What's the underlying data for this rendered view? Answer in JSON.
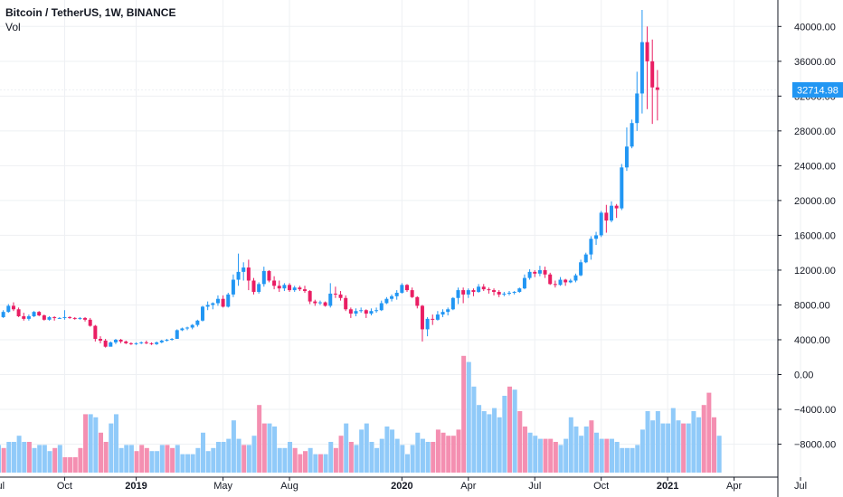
{
  "header": {
    "symbol_line": "Bitcoin / TetherUS, 1W, BINANCE",
    "volume_label": "Vol"
  },
  "colors": {
    "up": "#2196f3",
    "down": "#e91e63",
    "vol_up": "#90caf9",
    "vol_down": "#f48fb1",
    "grid": "#eef0f3",
    "axis_line": "#131722",
    "price_tag": "#2196f3"
  },
  "chart_data": {
    "type": "candlestick",
    "title": "Bitcoin / TetherUS, 1W, BINANCE",
    "current_price": "32714.98",
    "y_axis": {
      "ticks": [
        "40000.00",
        "36000.00",
        "32000.00",
        "28000.00",
        "24000.00",
        "20000.00",
        "16000.00",
        "12000.00",
        "8000.00",
        "4000.00",
        "0.00",
        "−4000.00",
        "−8000.00"
      ],
      "tick_values": [
        40000,
        36000,
        32000,
        28000,
        24000,
        20000,
        16000,
        12000,
        8000,
        4000,
        0,
        -4000,
        -8000
      ],
      "range": [
        -11000,
        42000
      ]
    },
    "x_axis": {
      "labels": [
        {
          "text": "Jul",
          "week": 0,
          "bold": false
        },
        {
          "text": "Oct",
          "week": 13,
          "bold": false
        },
        {
          "text": "2019",
          "week": 27,
          "bold": true
        },
        {
          "text": "May",
          "week": 44,
          "bold": false
        },
        {
          "text": "Aug",
          "week": 57,
          "bold": false
        },
        {
          "text": "2020",
          "week": 79,
          "bold": true
        },
        {
          "text": "Apr",
          "week": 92,
          "bold": false
        },
        {
          "text": "Jul",
          "week": 105,
          "bold": false
        },
        {
          "text": "Oct",
          "week": 118,
          "bold": false
        },
        {
          "text": "2021",
          "week": 131,
          "bold": true
        },
        {
          "text": "Apr",
          "week": 144,
          "bold": false
        },
        {
          "text": "Jul",
          "week": 157,
          "bold": false
        }
      ]
    },
    "candles": [
      [
        6500,
        6700,
        6300,
        6600
      ],
      [
        6600,
        7400,
        6500,
        7200
      ],
      [
        7200,
        8100,
        7100,
        7900
      ],
      [
        7900,
        8300,
        7300,
        7500
      ],
      [
        7500,
        7700,
        6600,
        6700
      ],
      [
        6700,
        7100,
        6200,
        6400
      ],
      [
        6400,
        6900,
        6200,
        6700
      ],
      [
        6700,
        7300,
        6600,
        7200
      ],
      [
        7200,
        7300,
        6700,
        6800
      ],
      [
        6800,
        6900,
        6200,
        6300
      ],
      [
        6300,
        6700,
        6200,
        6600
      ],
      [
        6600,
        6700,
        6200,
        6500
      ],
      [
        6500,
        6600,
        6400,
        6500
      ],
      [
        6500,
        7400,
        6300,
        6600
      ],
      [
        6600,
        6700,
        6400,
        6500
      ],
      [
        6500,
        6600,
        6300,
        6400
      ],
      [
        6400,
        6600,
        6300,
        6500
      ],
      [
        6500,
        6600,
        6100,
        6300
      ],
      [
        6300,
        6500,
        5500,
        5600
      ],
      [
        5600,
        5700,
        3800,
        4100
      ],
      [
        4100,
        4400,
        3600,
        3900
      ],
      [
        3900,
        4100,
        3100,
        3200
      ],
      [
        3200,
        3800,
        3300,
        3700
      ],
      [
        3700,
        4100,
        3500,
        4000
      ],
      [
        4000,
        4100,
        3600,
        3800
      ],
      [
        3800,
        3900,
        3500,
        3600
      ],
      [
        3600,
        3700,
        3400,
        3500
      ],
      [
        3500,
        3700,
        3400,
        3600
      ],
      [
        3600,
        3800,
        3500,
        3700
      ],
      [
        3700,
        3900,
        3500,
        3600
      ],
      [
        3600,
        3700,
        3400,
        3500
      ],
      [
        3500,
        3800,
        3400,
        3700
      ],
      [
        3700,
        4000,
        3600,
        3900
      ],
      [
        3900,
        4100,
        3800,
        4000
      ],
      [
        4000,
        4200,
        3900,
        4100
      ],
      [
        4100,
        5200,
        4100,
        5100
      ],
      [
        5100,
        5400,
        5000,
        5300
      ],
      [
        5300,
        5500,
        5100,
        5400
      ],
      [
        5400,
        5800,
        5200,
        5700
      ],
      [
        5700,
        6300,
        5500,
        6200
      ],
      [
        6200,
        7900,
        6100,
        7800
      ],
      [
        7800,
        8400,
        7400,
        8000
      ],
      [
        8000,
        8300,
        7500,
        8200
      ],
      [
        8200,
        9100,
        7900,
        8700
      ],
      [
        8700,
        9100,
        7700,
        7800
      ],
      [
        7800,
        9400,
        7700,
        9200
      ],
      [
        9200,
        11500,
        8900,
        10900
      ],
      [
        10900,
        13900,
        10200,
        11800
      ],
      [
        11800,
        12900,
        10800,
        12300
      ],
      [
        12300,
        13200,
        9700,
        10800
      ],
      [
        10800,
        11100,
        9200,
        9500
      ],
      [
        9500,
        10600,
        9300,
        10400
      ],
      [
        10400,
        12400,
        10100,
        11900
      ],
      [
        11900,
        12000,
        10600,
        10800
      ],
      [
        10800,
        11300,
        9800,
        10200
      ],
      [
        10200,
        10800,
        9500,
        9900
      ],
      [
        9900,
        10500,
        9600,
        10300
      ],
      [
        10300,
        10500,
        9500,
        9700
      ],
      [
        9700,
        10200,
        9500,
        10000
      ],
      [
        10000,
        10200,
        9600,
        9800
      ],
      [
        9800,
        10200,
        9400,
        9600
      ],
      [
        9600,
        9700,
        8100,
        8400
      ],
      [
        8400,
        8600,
        7900,
        8200
      ],
      [
        8200,
        8500,
        8000,
        8300
      ],
      [
        8300,
        8400,
        7800,
        7900
      ],
      [
        7900,
        10500,
        7700,
        9300
      ],
      [
        9300,
        10100,
        8800,
        9200
      ],
      [
        9200,
        9600,
        8500,
        8800
      ],
      [
        8800,
        9100,
        7300,
        7500
      ],
      [
        7500,
        7700,
        6500,
        7000
      ],
      [
        7000,
        7600,
        6700,
        7300
      ],
      [
        7300,
        7700,
        7100,
        7400
      ],
      [
        7400,
        7500,
        6500,
        7000
      ],
      [
        7000,
        7600,
        6800,
        7300
      ],
      [
        7300,
        7700,
        7100,
        7400
      ],
      [
        7400,
        8500,
        7300,
        8200
      ],
      [
        8200,
        8900,
        8100,
        8700
      ],
      [
        8700,
        9200,
        8400,
        9000
      ],
      [
        9000,
        9700,
        8600,
        9400
      ],
      [
        9400,
        10500,
        9300,
        10300
      ],
      [
        10300,
        10400,
        9500,
        9700
      ],
      [
        9700,
        10000,
        8800,
        8900
      ],
      [
        8900,
        9000,
        7600,
        7900
      ],
      [
        7900,
        8000,
        3800,
        5200
      ],
      [
        5200,
        6600,
        4400,
        6400
      ],
      [
        6400,
        6900,
        5700,
        6300
      ],
      [
        6300,
        7300,
        6200,
        6900
      ],
      [
        6900,
        7500,
        6600,
        7200
      ],
      [
        7200,
        7700,
        6800,
        7500
      ],
      [
        7500,
        8900,
        7400,
        8800
      ],
      [
        8800,
        10000,
        8100,
        9700
      ],
      [
        9700,
        10000,
        8200,
        9200
      ],
      [
        9200,
        9900,
        8800,
        9700
      ],
      [
        9700,
        9900,
        9000,
        9500
      ],
      [
        9500,
        10400,
        9400,
        10100
      ],
      [
        10100,
        10400,
        9600,
        9800
      ],
      [
        9800,
        10000,
        9300,
        9700
      ],
      [
        9700,
        9900,
        9100,
        9500
      ],
      [
        9500,
        9700,
        8900,
        9200
      ],
      [
        9200,
        9500,
        9000,
        9300
      ],
      [
        9300,
        9600,
        9100,
        9400
      ],
      [
        9400,
        9600,
        9200,
        9500
      ],
      [
        9500,
        10000,
        9400,
        9900
      ],
      [
        9900,
        11500,
        9800,
        11100
      ],
      [
        11100,
        12100,
        10900,
        11800
      ],
      [
        11800,
        12000,
        11200,
        11600
      ],
      [
        11600,
        12500,
        11300,
        12000
      ],
      [
        12000,
        12400,
        11100,
        11500
      ],
      [
        11500,
        11700,
        10300,
        10400
      ],
      [
        10400,
        10800,
        10000,
        10300
      ],
      [
        10300,
        11200,
        10200,
        10900
      ],
      [
        10900,
        11000,
        10200,
        10600
      ],
      [
        10600,
        11000,
        10500,
        10800
      ],
      [
        10800,
        11600,
        10600,
        11400
      ],
      [
        11400,
        13200,
        11300,
        12900
      ],
      [
        12900,
        14000,
        12800,
        13800
      ],
      [
        13800,
        15900,
        13200,
        15600
      ],
      [
        15600,
        16400,
        14900,
        16000
      ],
      [
        16000,
        18800,
        15800,
        18600
      ],
      [
        18600,
        19500,
        16300,
        17700
      ],
      [
        17700,
        19900,
        17500,
        19400
      ],
      [
        19400,
        19600,
        18000,
        19100
      ],
      [
        19100,
        24200,
        18900,
        23800
      ],
      [
        23800,
        28400,
        23400,
        26200
      ],
      [
        26200,
        29300,
        26000,
        28900
      ],
      [
        28900,
        34800,
        28000,
        32300
      ],
      [
        32300,
        41900,
        30000,
        38200
      ],
      [
        38200,
        40000,
        30500,
        36000
      ],
      [
        36000,
        38500,
        28800,
        33000
      ],
      [
        33000,
        35000,
        29200,
        32715
      ]
    ],
    "volume": [
      [
        9,
        "u"
      ],
      [
        8,
        "d"
      ],
      [
        10,
        "u"
      ],
      [
        10,
        "u"
      ],
      [
        12,
        "u"
      ],
      [
        10,
        "u"
      ],
      [
        10,
        "d"
      ],
      [
        8,
        "u"
      ],
      [
        9,
        "u"
      ],
      [
        9,
        "u"
      ],
      [
        7,
        "u"
      ],
      [
        8,
        "d"
      ],
      [
        9,
        "u"
      ],
      [
        5,
        "d"
      ],
      [
        5,
        "d"
      ],
      [
        5,
        "d"
      ],
      [
        8,
        "d"
      ],
      [
        19,
        "d"
      ],
      [
        19,
        "u"
      ],
      [
        18,
        "u"
      ],
      [
        13,
        "d"
      ],
      [
        10,
        "d"
      ],
      [
        16,
        "u"
      ],
      [
        19,
        "u"
      ],
      [
        8,
        "u"
      ],
      [
        9,
        "u"
      ],
      [
        9,
        "u"
      ],
      [
        7,
        "d"
      ],
      [
        9,
        "d"
      ],
      [
        8,
        "d"
      ],
      [
        7,
        "u"
      ],
      [
        7,
        "u"
      ],
      [
        9,
        "u"
      ],
      [
        9,
        "d"
      ],
      [
        8,
        "d"
      ],
      [
        9,
        "u"
      ],
      [
        6,
        "u"
      ],
      [
        6,
        "u"
      ],
      [
        6,
        "u"
      ],
      [
        8,
        "u"
      ],
      [
        13,
        "u"
      ],
      [
        7,
        "u"
      ],
      [
        8,
        "u"
      ],
      [
        10,
        "u"
      ],
      [
        10,
        "u"
      ],
      [
        11,
        "u"
      ],
      [
        17,
        "u"
      ],
      [
        11,
        "u"
      ],
      [
        9,
        "d"
      ],
      [
        9,
        "u"
      ],
      [
        12,
        "u"
      ],
      [
        22,
        "d"
      ],
      [
        16,
        "d"
      ],
      [
        16,
        "u"
      ],
      [
        15,
        "u"
      ],
      [
        8,
        "u"
      ],
      [
        8,
        "u"
      ],
      [
        10,
        "u"
      ],
      [
        8,
        "d"
      ],
      [
        6,
        "d"
      ],
      [
        7,
        "d"
      ],
      [
        8,
        "u"
      ],
      [
        6,
        "u"
      ],
      [
        6,
        "d"
      ],
      [
        6,
        "u"
      ],
      [
        10,
        "u"
      ],
      [
        8,
        "d"
      ],
      [
        12,
        "d"
      ],
      [
        16,
        "u"
      ],
      [
        10,
        "d"
      ],
      [
        9,
        "u"
      ],
      [
        14,
        "u"
      ],
      [
        16,
        "u"
      ],
      [
        10,
        "u"
      ],
      [
        8,
        "u"
      ],
      [
        11,
        "u"
      ],
      [
        15,
        "u"
      ],
      [
        14,
        "u"
      ],
      [
        11,
        "u"
      ],
      [
        9,
        "u"
      ],
      [
        6,
        "u"
      ],
      [
        9,
        "u"
      ],
      [
        13,
        "u"
      ],
      [
        11,
        "u"
      ],
      [
        10,
        "u"
      ],
      [
        10,
        "d"
      ],
      [
        14,
        "d"
      ],
      [
        13,
        "d"
      ],
      [
        12,
        "d"
      ],
      [
        12,
        "d"
      ],
      [
        14,
        "d"
      ],
      [
        38,
        "d"
      ],
      [
        36,
        "u"
      ],
      [
        28,
        "u"
      ],
      [
        22,
        "u"
      ],
      [
        20,
        "u"
      ],
      [
        19,
        "u"
      ],
      [
        21,
        "u"
      ],
      [
        18,
        "u"
      ],
      [
        25,
        "u"
      ],
      [
        28,
        "d"
      ],
      [
        27,
        "u"
      ],
      [
        20,
        "d"
      ],
      [
        15,
        "d"
      ],
      [
        13,
        "u"
      ],
      [
        12,
        "u"
      ],
      [
        11,
        "u"
      ],
      [
        11,
        "d"
      ],
      [
        11,
        "d"
      ],
      [
        10,
        "d"
      ],
      [
        9,
        "u"
      ],
      [
        11,
        "u"
      ],
      [
        18,
        "u"
      ],
      [
        15,
        "u"
      ],
      [
        12,
        "u"
      ],
      [
        15,
        "u"
      ],
      [
        17,
        "d"
      ],
      [
        13,
        "u"
      ],
      [
        11,
        "u"
      ],
      [
        11,
        "d"
      ],
      [
        11,
        "u"
      ],
      [
        10,
        "u"
      ],
      [
        8,
        "u"
      ],
      [
        8,
        "u"
      ],
      [
        8,
        "u"
      ],
      [
        9,
        "u"
      ],
      [
        14,
        "u"
      ],
      [
        20,
        "u"
      ],
      [
        17,
        "u"
      ],
      [
        20,
        "u"
      ]
    ],
    "volume_extra": [
      [
        16,
        "u"
      ],
      [
        16,
        "u"
      ],
      [
        21,
        "u"
      ],
      [
        17,
        "u"
      ],
      [
        16,
        "d"
      ],
      [
        16,
        "u"
      ],
      [
        20,
        "u"
      ],
      [
        18,
        "u"
      ],
      [
        22,
        "d"
      ],
      [
        26,
        "d"
      ],
      [
        18,
        "d"
      ],
      [
        12,
        "u"
      ]
    ]
  }
}
